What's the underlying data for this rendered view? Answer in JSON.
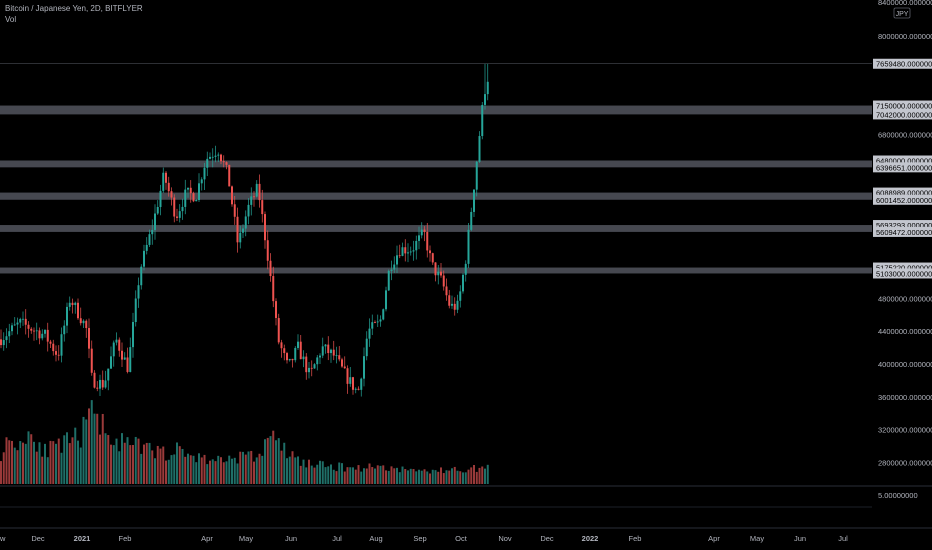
{
  "legend": {
    "symbol": "Bitcoin / Japanese Yen, 2D, BITFLYER",
    "indicator": "Vol"
  },
  "colors": {
    "background": "#000000",
    "up": "#26a69a",
    "down": "#ef5350",
    "volume_up": "#1f6f68",
    "volume_down": "#9b3a3a",
    "zone": "#5d606b",
    "axis_text": "#b2b5be",
    "label_bg": "#c3c6ce",
    "label_text": "#000000",
    "separator": "#2a2e39"
  },
  "chart_data": {
    "type": "candlestick",
    "price_scale": {
      "currency": "JPY",
      "min": 2500000,
      "max": 8400000,
      "ticks": [
        "2800000.00000000",
        "3200000.00000000",
        "3600000.00000000",
        "4000000.00000000",
        "4400000.00000000",
        "4800000.00000000",
        "6800000.00000000",
        "8000000.00000000",
        "8400000.00000000"
      ]
    },
    "level_labels": [
      "7659480.00000000",
      "7150000.00000000",
      "7042000.00000000",
      "6480000.00000000",
      "6396651.00000000",
      "6088989.00000000",
      "6001452.00000000",
      "5693293.00000000",
      "5609472.00000000",
      "5175220.00000000",
      "5103000.00000000"
    ],
    "zones": [
      [
        7042000,
        7150000
      ],
      [
        6396651,
        6480000
      ],
      [
        6001452,
        6088989
      ],
      [
        5609472,
        5693293
      ],
      [
        5103000,
        5175220
      ]
    ],
    "last_price_line": 7659480,
    "volume_pane_tick": "5.00000000",
    "time_axis": [
      "w",
      "Dec",
      "2021",
      "Feb",
      "Apr",
      "May",
      "Jun",
      "Jul",
      "Aug",
      "Sep",
      "Oct",
      "Nov",
      "Dec",
      "2022",
      "Feb",
      "Apr",
      "May",
      "Jun",
      "Jul"
    ],
    "candle_anchors": [
      [
        0,
        4300000
      ],
      [
        20,
        4500000
      ],
      [
        45,
        4350000
      ],
      [
        58,
        4100000
      ],
      [
        70,
        4800000
      ],
      [
        86,
        4450000
      ],
      [
        92,
        3800000
      ],
      [
        104,
        3750000
      ],
      [
        116,
        4300000
      ],
      [
        128,
        3950000
      ],
      [
        140,
        5150000
      ],
      [
        152,
        5650000
      ],
      [
        164,
        6300000
      ],
      [
        176,
        5800000
      ],
      [
        186,
        6080000
      ],
      [
        196,
        6050000
      ],
      [
        206,
        6500000
      ],
      [
        218,
        6620000
      ],
      [
        228,
        6300000
      ],
      [
        238,
        5450000
      ],
      [
        248,
        5900000
      ],
      [
        258,
        6150000
      ],
      [
        268,
        5300000
      ],
      [
        278,
        4300000
      ],
      [
        288,
        3950000
      ],
      [
        298,
        4200000
      ],
      [
        310,
        3850000
      ],
      [
        322,
        4200000
      ],
      [
        334,
        4100000
      ],
      [
        346,
        3850000
      ],
      [
        358,
        3650000
      ],
      [
        368,
        4400000
      ],
      [
        380,
        4500000
      ],
      [
        390,
        5200000
      ],
      [
        400,
        5400000
      ],
      [
        412,
        5400000
      ],
      [
        424,
        5600000
      ],
      [
        432,
        5200000
      ],
      [
        442,
        5000000
      ],
      [
        450,
        4700000
      ],
      [
        458,
        4700000
      ],
      [
        466,
        5300000
      ],
      [
        476,
        6400000
      ],
      [
        484,
        7300000
      ],
      [
        488,
        7500000
      ],
      [
        490,
        7400000
      ]
    ],
    "volume_anchors": [
      [
        0,
        0.4
      ],
      [
        10,
        0.6
      ],
      [
        20,
        0.55
      ],
      [
        30,
        0.7
      ],
      [
        45,
        0.45
      ],
      [
        60,
        0.5
      ],
      [
        80,
        0.65
      ],
      [
        95,
        1.0
      ],
      [
        105,
        0.75
      ],
      [
        120,
        0.55
      ],
      [
        140,
        0.5
      ],
      [
        160,
        0.42
      ],
      [
        180,
        0.45
      ],
      [
        200,
        0.35
      ],
      [
        220,
        0.32
      ],
      [
        240,
        0.38
      ],
      [
        260,
        0.36
      ],
      [
        268,
        0.7
      ],
      [
        280,
        0.5
      ],
      [
        300,
        0.3
      ],
      [
        320,
        0.25
      ],
      [
        340,
        0.23
      ],
      [
        360,
        0.22
      ],
      [
        380,
        0.24
      ],
      [
        400,
        0.2
      ],
      [
        420,
        0.18
      ],
      [
        440,
        0.18
      ],
      [
        460,
        0.2
      ],
      [
        490,
        0.22
      ]
    ]
  }
}
